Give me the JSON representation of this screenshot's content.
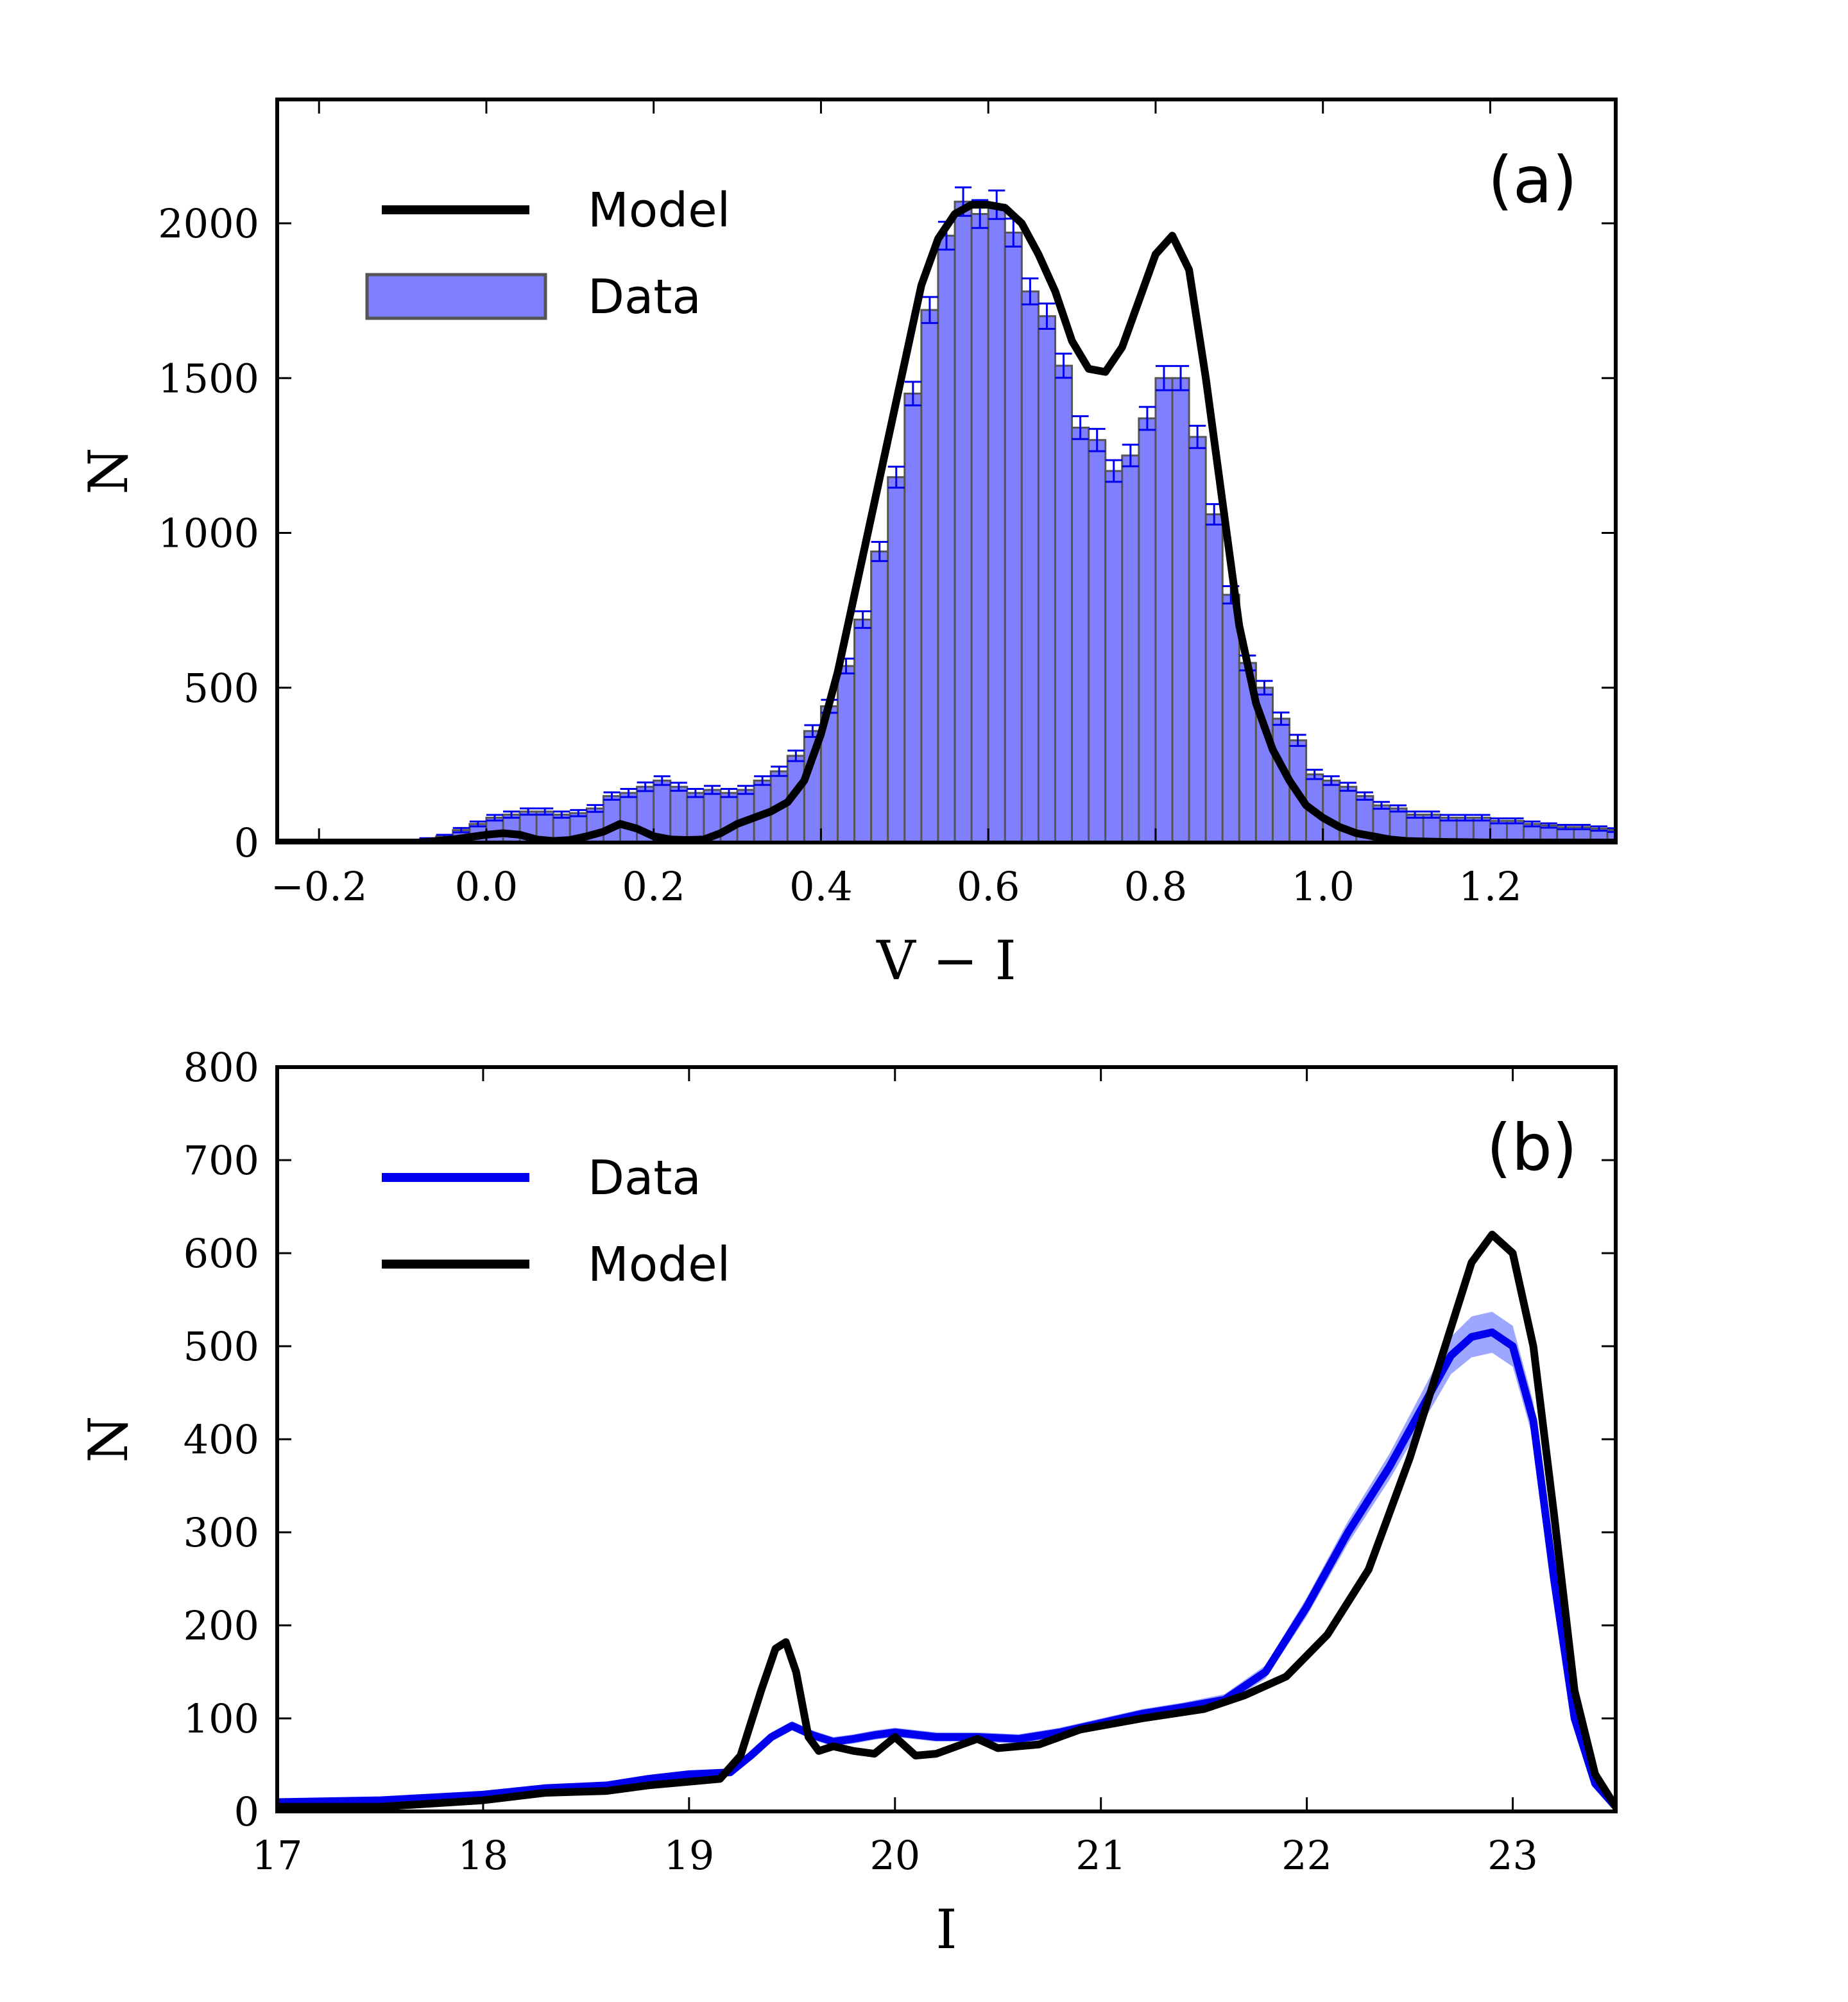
{
  "chart_data": [
    {
      "type": "bar",
      "panel_label": "(a)",
      "xlabel": "V − I",
      "ylabel": "N",
      "xlim": [
        -0.25,
        1.35
      ],
      "ylim": [
        0,
        2400
      ],
      "xticks": [
        -0.2,
        0.0,
        0.2,
        0.4,
        0.6,
        0.8,
        1.0,
        1.2
      ],
      "xtick_labels": [
        "−0.2",
        "0.0",
        "0.2",
        "0.4",
        "0.6",
        "0.8",
        "1.0",
        "1.2"
      ],
      "yticks": [
        0,
        500,
        1000,
        1500,
        2000
      ],
      "ytick_labels": [
        "0",
        "500",
        "1000",
        "1500",
        "2000"
      ],
      "legend_position": "top-left",
      "legend": [
        {
          "label": "Model",
          "kind": "line",
          "color": "#000000"
        },
        {
          "label": "Data",
          "kind": "patch",
          "color": "#8080ff"
        }
      ],
      "bin_width": 0.02,
      "data_hist": {
        "name": "Data",
        "color": "#8080ff",
        "edge_color": "#555555",
        "error_color": "#0000ee",
        "bin_centers": [
          -0.09,
          -0.07,
          -0.05,
          -0.03,
          -0.01,
          0.01,
          0.03,
          0.05,
          0.07,
          0.09,
          0.11,
          0.13,
          0.15,
          0.17,
          0.19,
          0.21,
          0.23,
          0.25,
          0.27,
          0.29,
          0.31,
          0.33,
          0.35,
          0.37,
          0.39,
          0.41,
          0.43,
          0.45,
          0.47,
          0.49,
          0.51,
          0.53,
          0.55,
          0.57,
          0.59,
          0.61,
          0.63,
          0.65,
          0.67,
          0.69,
          0.71,
          0.73,
          0.75,
          0.77,
          0.79,
          0.81,
          0.83,
          0.85,
          0.87,
          0.89,
          0.91,
          0.93,
          0.95,
          0.97,
          0.99,
          1.01,
          1.03,
          1.05,
          1.07,
          1.09,
          1.11,
          1.13,
          1.15,
          1.17,
          1.19,
          1.21,
          1.23,
          1.25,
          1.27,
          1.29,
          1.31,
          1.33,
          1.35
        ],
        "values": [
          5,
          10,
          20,
          40,
          60,
          80,
          90,
          100,
          100,
          90,
          95,
          110,
          150,
          160,
          180,
          200,
          180,
          160,
          170,
          160,
          170,
          200,
          230,
          280,
          360,
          440,
          570,
          720,
          940,
          1180,
          1450,
          1720,
          1960,
          2070,
          2030,
          2060,
          1970,
          1780,
          1700,
          1540,
          1340,
          1300,
          1200,
          1250,
          1370,
          1500,
          1500,
          1310,
          1060,
          800,
          580,
          500,
          400,
          330,
          220,
          200,
          180,
          150,
          120,
          110,
          90,
          90,
          80,
          80,
          80,
          70,
          70,
          60,
          55,
          50,
          50,
          45,
          40
        ],
        "errors": [
          3,
          4,
          5,
          7,
          8,
          9,
          10,
          10,
          10,
          10,
          10,
          11,
          12,
          13,
          14,
          14,
          13,
          13,
          13,
          13,
          13,
          14,
          15,
          17,
          19,
          21,
          24,
          27,
          31,
          34,
          38,
          42,
          45,
          46,
          45,
          46,
          45,
          42,
          41,
          39,
          37,
          36,
          35,
          35,
          37,
          39,
          39,
          36,
          33,
          28,
          24,
          22,
          20,
          18,
          15,
          14,
          13,
          12,
          11,
          10,
          10,
          10,
          9,
          9,
          9,
          8,
          8,
          8,
          7,
          7,
          7,
          7,
          6
        ]
      },
      "model_line": {
        "name": "Model",
        "color": "#000000",
        "x": [
          -0.25,
          -0.08,
          -0.04,
          0.0,
          0.02,
          0.04,
          0.06,
          0.08,
          0.1,
          0.12,
          0.14,
          0.16,
          0.18,
          0.2,
          0.22,
          0.24,
          0.26,
          0.28,
          0.3,
          0.32,
          0.34,
          0.36,
          0.38,
          0.4,
          0.42,
          0.44,
          0.46,
          0.48,
          0.5,
          0.52,
          0.54,
          0.56,
          0.58,
          0.6,
          0.62,
          0.64,
          0.66,
          0.68,
          0.7,
          0.72,
          0.74,
          0.76,
          0.78,
          0.8,
          0.82,
          0.84,
          0.86,
          0.88,
          0.9,
          0.92,
          0.94,
          0.96,
          0.98,
          1.0,
          1.02,
          1.04,
          1.06,
          1.08,
          1.1,
          1.14,
          1.2,
          1.35
        ],
        "y": [
          0,
          0,
          10,
          25,
          30,
          25,
          10,
          5,
          8,
          20,
          35,
          60,
          45,
          20,
          10,
          8,
          10,
          30,
          60,
          80,
          100,
          130,
          200,
          350,
          550,
          800,
          1050,
          1300,
          1550,
          1800,
          1950,
          2030,
          2060,
          2060,
          2050,
          2000,
          1900,
          1780,
          1620,
          1530,
          1520,
          1600,
          1750,
          1900,
          1960,
          1850,
          1500,
          1100,
          700,
          450,
          300,
          200,
          120,
          80,
          50,
          30,
          20,
          10,
          5,
          2,
          0,
          0
        ]
      }
    },
    {
      "type": "line",
      "panel_label": "(b)",
      "xlabel": "I",
      "ylabel": "N",
      "xlim": [
        17,
        23.5
      ],
      "ylim": [
        0,
        800
      ],
      "xticks": [
        17,
        18,
        19,
        20,
        21,
        22,
        23
      ],
      "xtick_labels": [
        "17",
        "18",
        "19",
        "20",
        "21",
        "22",
        "23"
      ],
      "yticks": [
        0,
        100,
        200,
        300,
        400,
        500,
        600,
        700,
        800
      ],
      "ytick_labels": [
        "0",
        "100",
        "200",
        "300",
        "400",
        "500",
        "600",
        "700",
        "800"
      ],
      "legend_position": "top-left",
      "legend": [
        {
          "label": "Data",
          "kind": "line",
          "color": "#0000ee"
        },
        {
          "label": "Model",
          "kind": "line",
          "color": "#000000"
        }
      ],
      "series": [
        {
          "name": "Data",
          "color": "#0000ee",
          "band_color": "#4f5fff",
          "x": [
            17.0,
            17.5,
            18.0,
            18.3,
            18.6,
            18.8,
            19.0,
            19.2,
            19.3,
            19.4,
            19.5,
            19.6,
            19.7,
            19.8,
            19.9,
            20.0,
            20.2,
            20.4,
            20.6,
            20.8,
            21.0,
            21.2,
            21.4,
            21.6,
            21.8,
            22.0,
            22.2,
            22.4,
            22.6,
            22.7,
            22.8,
            22.9,
            23.0,
            23.1,
            23.2,
            23.3,
            23.4,
            23.5
          ],
          "y": [
            10,
            12,
            18,
            25,
            28,
            35,
            40,
            42,
            60,
            80,
            92,
            82,
            75,
            78,
            82,
            85,
            80,
            80,
            78,
            85,
            95,
            105,
            112,
            120,
            150,
            220,
            300,
            370,
            450,
            490,
            510,
            515,
            500,
            420,
            250,
            100,
            30,
            5
          ],
          "band": [
            3,
            3,
            3,
            3,
            3,
            3,
            3,
            3,
            4,
            5,
            5,
            5,
            5,
            5,
            5,
            5,
            5,
            5,
            5,
            5,
            5,
            5,
            5,
            6,
            7,
            10,
            12,
            14,
            18,
            20,
            22,
            22,
            22,
            20,
            15,
            8,
            4,
            2
          ]
        },
        {
          "name": "Model",
          "color": "#000000",
          "x": [
            17.0,
            17.5,
            18.0,
            18.3,
            18.6,
            18.8,
            19.0,
            19.15,
            19.25,
            19.35,
            19.42,
            19.47,
            19.52,
            19.58,
            19.63,
            19.7,
            19.8,
            19.9,
            20.0,
            20.05,
            20.1,
            20.2,
            20.3,
            20.4,
            20.5,
            20.7,
            20.9,
            21.2,
            21.5,
            21.7,
            21.9,
            22.1,
            22.3,
            22.5,
            22.7,
            22.8,
            22.9,
            23.0,
            23.1,
            23.2,
            23.3,
            23.4,
            23.5
          ],
          "y": [
            5,
            5,
            12,
            20,
            22,
            28,
            32,
            35,
            60,
            130,
            175,
            182,
            150,
            80,
            65,
            70,
            65,
            62,
            80,
            70,
            60,
            62,
            70,
            78,
            68,
            72,
            88,
            100,
            110,
            125,
            145,
            190,
            260,
            380,
            520,
            590,
            620,
            600,
            500,
            320,
            130,
            40,
            5
          ]
        }
      ]
    }
  ]
}
